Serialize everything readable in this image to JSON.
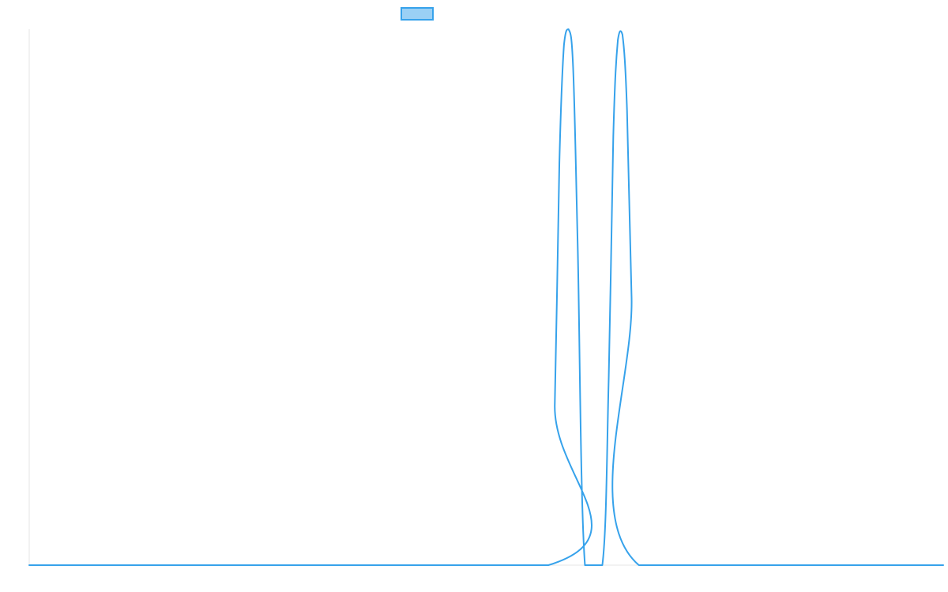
{
  "chart_data": {
    "type": "line",
    "title": "",
    "xlabel": "",
    "ylabel": "",
    "grid": false,
    "legend": {
      "placement": "top-center",
      "entries": [
        {
          "label": "",
          "color": "#36a2eb",
          "fill": "#9ad0f5"
        }
      ]
    },
    "xlim": [
      0,
      100
    ],
    "ylim": [
      0,
      1
    ],
    "series": [
      {
        "color": "#36a2eb",
        "x": [
          0,
          56.8,
          57.5,
          58.0,
          58.5,
          59.0,
          59.5,
          60.0,
          60.8,
          62.7,
          63.4,
          63.9,
          64.4,
          64.9,
          65.4,
          65.9,
          66.7,
          100
        ],
        "y": [
          0,
          0,
          0.3,
          0.75,
          0.97,
          1.0,
          0.93,
          0.6,
          0,
          0,
          0.35,
          0.8,
          0.98,
          0.99,
          0.85,
          0.5,
          0,
          0
        ]
      }
    ]
  }
}
